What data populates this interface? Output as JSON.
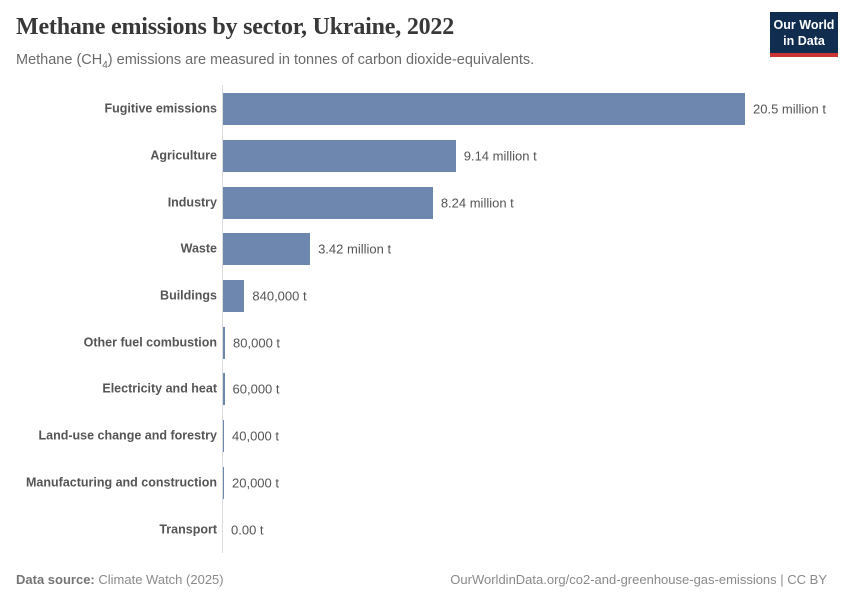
{
  "header": {
    "title": "Methane emissions by sector, Ukraine, 2022",
    "subtitle": {
      "prefix": "Methane (CH",
      "subscript": "4",
      "suffix": ") emissions are measured in tonnes of carbon dioxide-equivalents."
    },
    "logo": {
      "line1": "Our World",
      "line2": "in Data"
    }
  },
  "chart_data": {
    "type": "bar",
    "orientation": "horizontal",
    "title": "Methane emissions by sector, Ukraine, 2022",
    "unit": "tonnes of carbon dioxide-equivalents",
    "categories": [
      "Fugitive emissions",
      "Agriculture",
      "Industry",
      "Waste",
      "Buildings",
      "Other fuel combustion",
      "Electricity and heat",
      "Land-use change and forestry",
      "Manufacturing and construction",
      "Transport"
    ],
    "values": [
      20500000,
      9140000,
      8240000,
      3420000,
      840000,
      80000,
      60000,
      40000,
      20000,
      0
    ],
    "value_labels": [
      "20.5 million t",
      "9.14 million t",
      "8.24 million t",
      "3.42 million t",
      "840,000 t",
      "80,000 t",
      "60,000 t",
      "40,000 t",
      "20,000 t",
      "0.00 t"
    ],
    "xlim": [
      0,
      20500000
    ],
    "grid": false,
    "legend": "none",
    "bar_color": "#6e87ae"
  },
  "footer": {
    "datasource_label": "Data source:",
    "datasource_value": "Climate Watch (2025)",
    "attribution": "OurWorldinData.org/co2-and-greenhouse-gas-emissions | CC BY"
  },
  "colors": {
    "bar": "#6e87ae",
    "axis_line": "#dcdcdc",
    "logo_bg": "#102d50",
    "logo_accent": "#cc3333",
    "title_text": "#383838",
    "label_text": "#555555",
    "muted_text": "#8a8a8a"
  }
}
